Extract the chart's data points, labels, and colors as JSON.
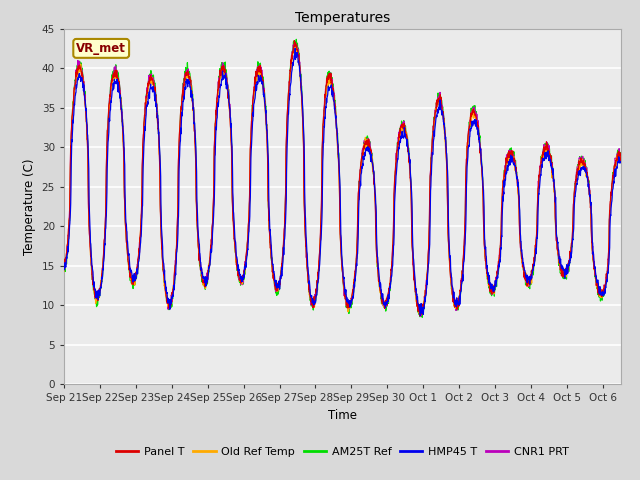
{
  "title": "Temperatures",
  "xlabel": "Time",
  "ylabel": "Temperature (C)",
  "ylim": [
    0,
    45
  ],
  "yticks": [
    0,
    5,
    10,
    15,
    20,
    25,
    30,
    35,
    40,
    45
  ],
  "annotation_text": "VR_met",
  "colors": {
    "Panel T": "#dd0000",
    "Old Ref Temp": "#ffaa00",
    "AM25T Ref": "#00dd00",
    "HMP45 T": "#0000ee",
    "CNR1 PRT": "#bb00bb"
  },
  "legend_labels": [
    "Panel T",
    "Old Ref Temp",
    "AM25T Ref",
    "HMP45 T",
    "CNR1 PRT"
  ],
  "x_tick_labels": [
    "Sep 21",
    "Sep 22",
    "Sep 23",
    "Sep 24",
    "Sep 25",
    "Sep 26",
    "Sep 27",
    "Sep 28",
    "Sep 29",
    "Sep 30",
    "Oct 1",
    "Oct 2",
    "Oct 3",
    "Oct 4",
    "Oct 5",
    "Oct 6"
  ],
  "background_color": "#d9d9d9",
  "plot_bg": "#ebebeb",
  "grid_color": "#ffffff",
  "linewidth": 0.9,
  "figsize": [
    6.4,
    4.8
  ],
  "dpi": 100
}
